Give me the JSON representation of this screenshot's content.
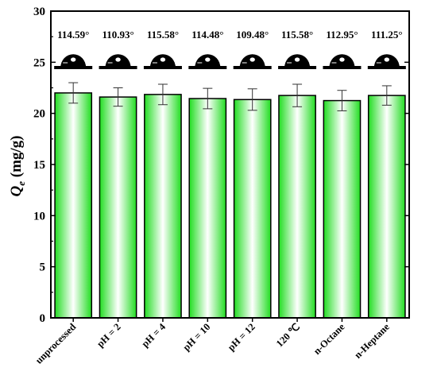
{
  "chart_data": {
    "type": "bar",
    "categories": [
      "unprocessed",
      "pH = 2",
      "pH = 4",
      "pH = 10",
      "pH = 12",
      "120 ℃",
      "n-Octane",
      "n-Heptane"
    ],
    "values": [
      22.0,
      21.6,
      21.85,
      21.45,
      21.35,
      21.75,
      21.25,
      21.75
    ],
    "errors": [
      1.0,
      0.9,
      1.0,
      1.0,
      1.05,
      1.1,
      1.0,
      0.95
    ],
    "contact_angles": [
      "114.59°",
      "110.93°",
      "115.58°",
      "114.48°",
      "109.48°",
      "115.58°",
      "112.95°",
      "111.25°"
    ],
    "ylabel_main": "Q",
    "ylabel_sub": "e",
    "ylabel_unit": " (mg/g)",
    "ylim": [
      0,
      30
    ],
    "yticks": [
      0,
      5,
      10,
      15,
      20,
      25,
      30
    ],
    "grid": false,
    "colors": {
      "bar_edge": "#000000",
      "bar_center": "#ffffff",
      "bar_side": "#33e633",
      "droplet": "#000000"
    }
  }
}
